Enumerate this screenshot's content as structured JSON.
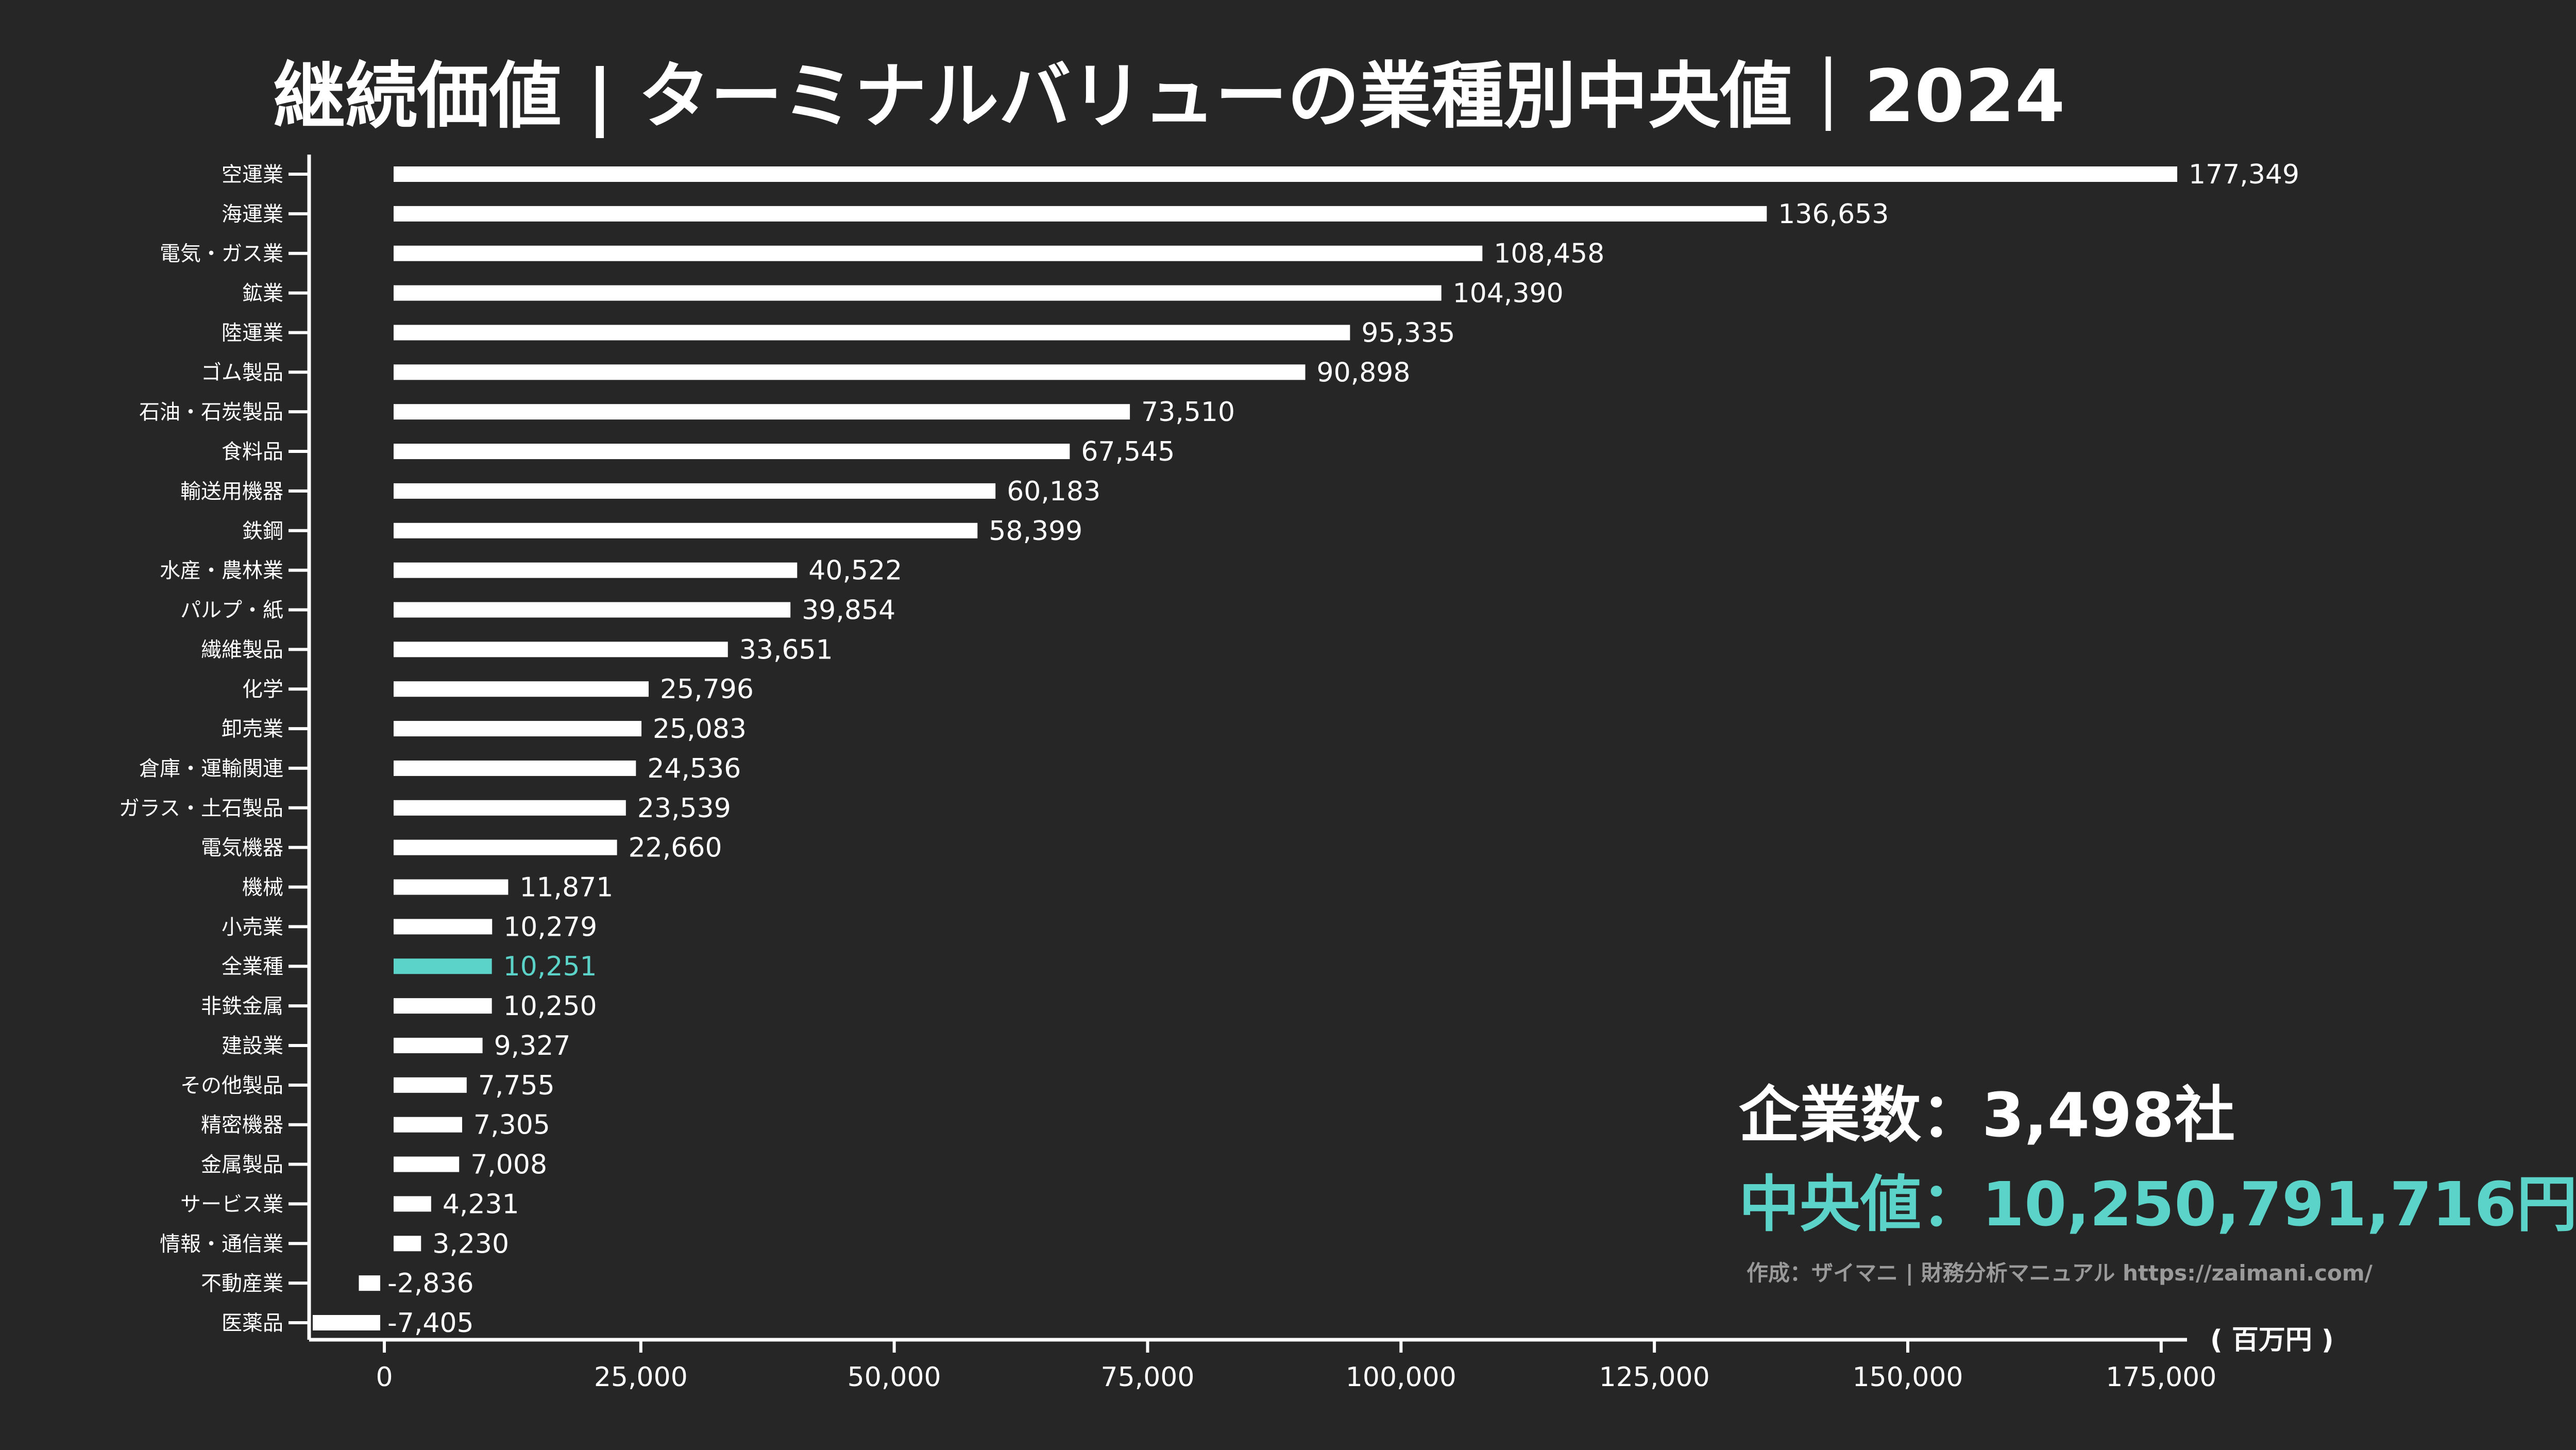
{
  "chart_data": {
    "type": "bar",
    "orientation": "horizontal",
    "title": "継続価値 | ターミナルバリューの業種別中央値｜2024",
    "unit_label": "( 百万円 )",
    "xlim": [
      -7405,
      177349
    ],
    "xticks": [
      "0",
      "25,000",
      "50,000",
      "75,000",
      "100,000",
      "125,000",
      "150,000",
      "175,000"
    ],
    "xtick_values": [
      0,
      25000,
      50000,
      75000,
      100000,
      125000,
      150000,
      175000
    ],
    "grid": false,
    "categories": [
      "空運業",
      "海運業",
      "電気・ガス業",
      "鉱業",
      "陸運業",
      "ゴム製品",
      "石油・石炭製品",
      "食料品",
      "輸送用機器",
      "鉄鋼",
      "水産・農林業",
      "パルプ・紙",
      "繊維製品",
      "化学",
      "卸売業",
      "倉庫・運輸関連",
      "ガラス・土石製品",
      "電気機器",
      "機械",
      "小売業",
      "全業種",
      "非鉄金属",
      "建設業",
      "その他製品",
      "精密機器",
      "金属製品",
      "サービス業",
      "情報・通信業",
      "不動産業",
      "医薬品"
    ],
    "values": [
      177349,
      136653,
      108458,
      104390,
      95335,
      90898,
      73510,
      67545,
      60183,
      58399,
      40522,
      39854,
      33651,
      25796,
      25083,
      24536,
      23539,
      22660,
      11871,
      10279,
      10251,
      10250,
      9327,
      7755,
      7305,
      7008,
      4231,
      3230,
      -2836,
      -7405
    ],
    "value_labels": [
      "177,349",
      "136,653",
      "108,458",
      "104,390",
      "95,335",
      "90,898",
      "73,510",
      "67,545",
      "60,183",
      "58,399",
      "40,522",
      "39,854",
      "33,651",
      "25,796",
      "25,083",
      "24,536",
      "23,539",
      "22,660",
      "11,871",
      "10,279",
      "10,251",
      "10,250",
      "9,327",
      "7,755",
      "7,305",
      "7,008",
      "4,231",
      "3,230",
      "-2,836",
      "-7,405"
    ],
    "highlight_category": "全業種",
    "colors": {
      "bar": "#ffffff",
      "highlight": "#5cd3c8",
      "background": "#262626"
    }
  },
  "summary": {
    "companies": "企業数：3,498社",
    "median": "中央値：10,250,791,716円"
  },
  "credit": "作成：ザイマニ | 財務分析マニュアル https://zaimani.com/"
}
